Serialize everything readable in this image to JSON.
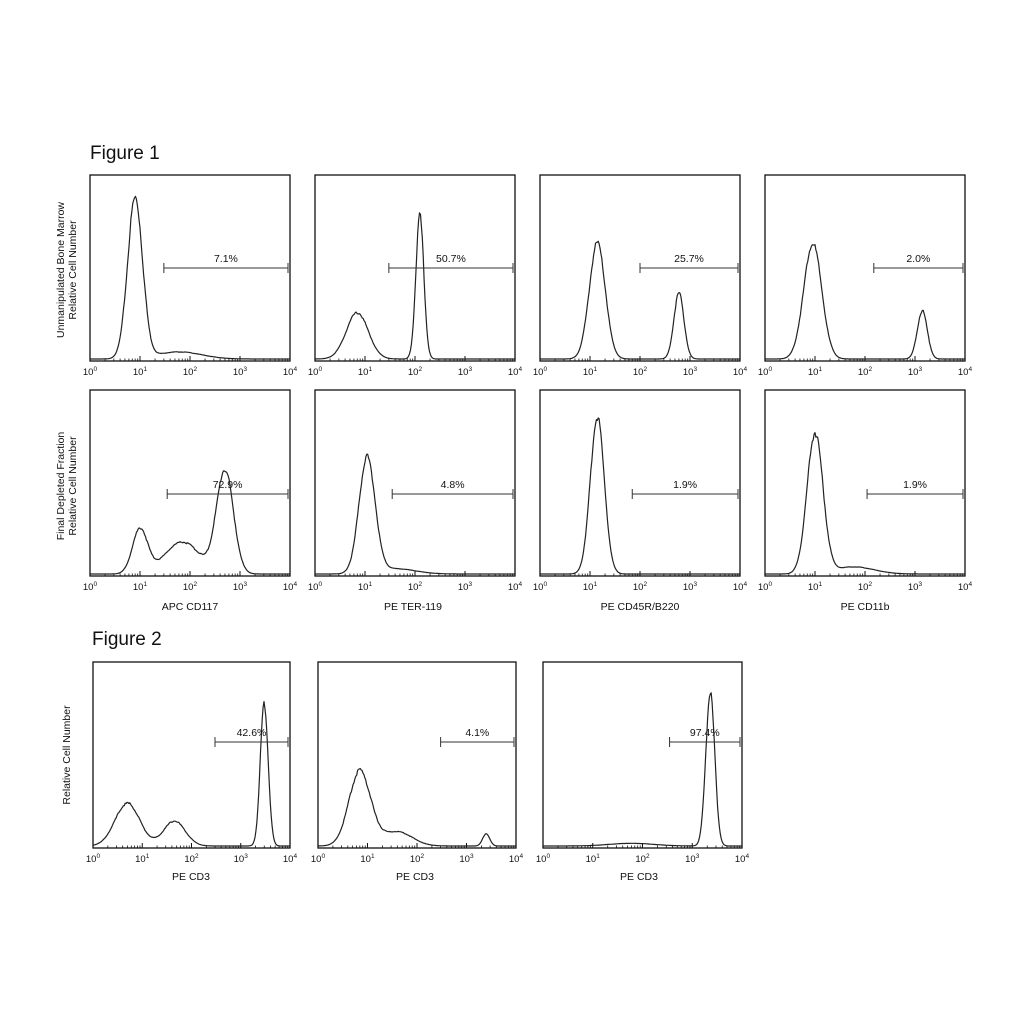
{
  "figure1": {
    "title": "Figure 1",
    "row_labels": [
      [
        "Unmanipulated Bone Marrow",
        "Relative Cell Number"
      ],
      [
        "Final Depleted Fraction",
        "Relative Cell Number"
      ]
    ],
    "xlabels": [
      "APC CD117",
      "PE TER-119",
      "PE CD45R/B220",
      "PE CD11b"
    ]
  },
  "figure2": {
    "title": "Figure 2",
    "ylabel": "Relative Cell Number",
    "xlabels": [
      "PE CD3",
      "PE CD3",
      "PE CD3"
    ]
  },
  "chart_data": [
    {
      "type": "area",
      "figure": "Figure 1",
      "row": "Unmanipulated Bone Marrow",
      "xlabel": "APC CD117",
      "xscale": "log",
      "xlim": [
        1,
        10000
      ],
      "gate": {
        "label": "7.1%",
        "from": 30,
        "to": 10000
      },
      "peaks": [
        {
          "x": 8,
          "height": 0.9,
          "width": 0.15
        },
        {
          "x": 60,
          "height": 0.04,
          "width": 0.45
        }
      ]
    },
    {
      "type": "area",
      "figure": "Figure 1",
      "row": "Unmanipulated Bone Marrow",
      "xlabel": "PE TER-119",
      "xscale": "log",
      "xlim": [
        1,
        10000
      ],
      "gate": {
        "label": "50.7%",
        "from": 30,
        "to": 10000
      },
      "peaks": [
        {
          "x": 7,
          "height": 0.26,
          "width": 0.22
        },
        {
          "x": 125,
          "height": 0.8,
          "width": 0.08
        }
      ]
    },
    {
      "type": "area",
      "figure": "Figure 1",
      "row": "Unmanipulated Bone Marrow",
      "xlabel": "PE CD45R/B220",
      "xscale": "log",
      "xlim": [
        1,
        10000
      ],
      "gate": {
        "label": "25.7%",
        "from": 100,
        "to": 10000
      },
      "peaks": [
        {
          "x": 14,
          "height": 0.65,
          "width": 0.16
        },
        {
          "x": 600,
          "height": 0.37,
          "width": 0.1
        }
      ]
    },
    {
      "type": "area",
      "figure": "Figure 1",
      "row": "Unmanipulated Bone Marrow",
      "xlabel": "PE CD11b",
      "xscale": "log",
      "xlim": [
        1,
        10000
      ],
      "gate": {
        "label": "2.0%",
        "from": 150,
        "to": 10000
      },
      "peaks": [
        {
          "x": 9,
          "height": 0.65,
          "width": 0.18
        },
        {
          "x": 1400,
          "height": 0.27,
          "width": 0.1
        }
      ]
    },
    {
      "type": "area",
      "figure": "Figure 1",
      "row": "Final Depleted Fraction",
      "xlabel": "APC CD117",
      "xscale": "log",
      "xlim": [
        1,
        10000
      ],
      "gate": {
        "label": "72.9%",
        "from": 35,
        "to": 10000
      },
      "peaks": [
        {
          "x": 10,
          "height": 0.25,
          "width": 0.15
        },
        {
          "x": 70,
          "height": 0.18,
          "width": 0.35
        },
        {
          "x": 500,
          "height": 0.58,
          "width": 0.17
        }
      ]
    },
    {
      "type": "area",
      "figure": "Figure 1",
      "row": "Final Depleted Fraction",
      "xlabel": "PE TER-119",
      "xscale": "log",
      "xlim": [
        1,
        10000
      ],
      "gate": {
        "label": "4.8%",
        "from": 35,
        "to": 10000
      },
      "peaks": [
        {
          "x": 11,
          "height": 0.65,
          "width": 0.16
        },
        {
          "x": 40,
          "height": 0.03,
          "width": 0.4
        }
      ]
    },
    {
      "type": "area",
      "figure": "Figure 1",
      "row": "Final Depleted Fraction",
      "xlabel": "PE CD45R/B220",
      "xscale": "log",
      "xlim": [
        1,
        10000
      ],
      "gate": {
        "label": "1.9%",
        "from": 70,
        "to": 10000
      },
      "peaks": [
        {
          "x": 14,
          "height": 0.88,
          "width": 0.14
        }
      ]
    },
    {
      "type": "area",
      "figure": "Figure 1",
      "row": "Final Depleted Fraction",
      "xlabel": "PE CD11b",
      "xscale": "log",
      "xlim": [
        1,
        10000
      ],
      "gate": {
        "label": "1.9%",
        "from": 110,
        "to": 10000
      },
      "peaks": [
        {
          "x": 10,
          "height": 0.79,
          "width": 0.16
        },
        {
          "x": 60,
          "height": 0.04,
          "width": 0.4
        }
      ]
    },
    {
      "type": "area",
      "figure": "Figure 2",
      "xlabel": "PE CD3",
      "xscale": "log",
      "xlim": [
        1,
        10000
      ],
      "gate": {
        "label": "42.6%",
        "from": 300,
        "to": 10000
      },
      "peaks": [
        {
          "x": 5,
          "height": 0.24,
          "width": 0.25
        },
        {
          "x": 45,
          "height": 0.14,
          "width": 0.22
        },
        {
          "x": 3000,
          "height": 0.8,
          "width": 0.08
        }
      ]
    },
    {
      "type": "area",
      "figure": "Figure 2",
      "xlabel": "PE CD3",
      "xscale": "log",
      "xlim": [
        1,
        10000
      ],
      "gate": {
        "label": "4.1%",
        "from": 300,
        "to": 10000
      },
      "peaks": [
        {
          "x": 7,
          "height": 0.42,
          "width": 0.22
        },
        {
          "x": 40,
          "height": 0.08,
          "width": 0.3
        },
        {
          "x": 2500,
          "height": 0.07,
          "width": 0.07
        }
      ]
    },
    {
      "type": "area",
      "figure": "Figure 2",
      "xlabel": "PE CD3",
      "xscale": "log",
      "xlim": [
        1,
        10000
      ],
      "gate": {
        "label": "97.4%",
        "from": 350,
        "to": 10000
      },
      "peaks": [
        {
          "x": 60,
          "height": 0.015,
          "width": 0.45
        },
        {
          "x": 2300,
          "height": 0.86,
          "width": 0.09
        }
      ]
    }
  ]
}
